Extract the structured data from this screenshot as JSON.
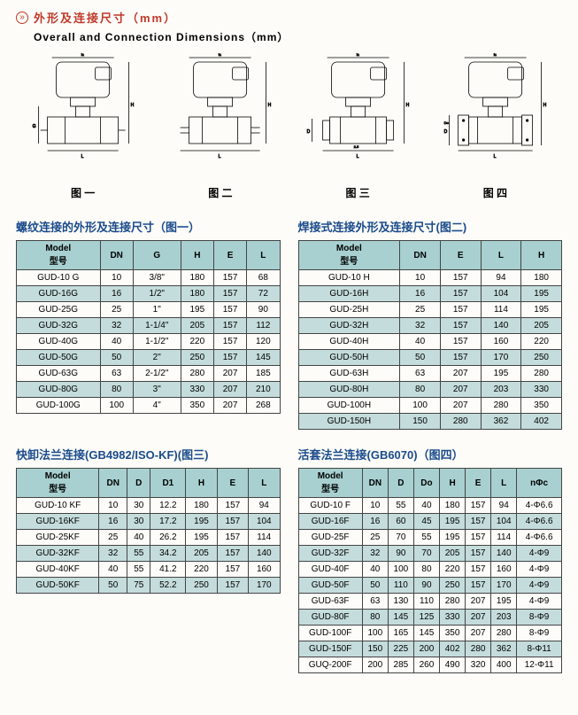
{
  "title": {
    "marker": "»",
    "cn": "外形及连接尺寸（mm）",
    "en": "Overall and Connection Dimensions（mm）"
  },
  "diagram_labels": [
    "图 一",
    "图 二",
    "图 三",
    "图 四"
  ],
  "table1": {
    "title": "螺纹连接的外形及连接尺寸（图一）",
    "headers": [
      "Model\n型号",
      "DN",
      "G",
      "H",
      "E",
      "L"
    ],
    "rows": [
      [
        "GUD-10 G",
        "10",
        "3/8\"",
        "180",
        "157",
        "68"
      ],
      [
        "GUD-16G",
        "16",
        "1/2\"",
        "180",
        "157",
        "72"
      ],
      [
        "GUD-25G",
        "25",
        "1\"",
        "195",
        "157",
        "90"
      ],
      [
        "GUD-32G",
        "32",
        "1-1/4\"",
        "205",
        "157",
        "112"
      ],
      [
        "GUD-40G",
        "40",
        "1-1/2\"",
        "220",
        "157",
        "120"
      ],
      [
        "GUD-50G",
        "50",
        "2\"",
        "250",
        "157",
        "145"
      ],
      [
        "GUD-63G",
        "63",
        "2-1/2\"",
        "280",
        "207",
        "185"
      ],
      [
        "GUD-80G",
        "80",
        "3\"",
        "330",
        "207",
        "210"
      ],
      [
        "GUD-100G",
        "100",
        "4\"",
        "350",
        "207",
        "268"
      ]
    ]
  },
  "table2": {
    "title": "焊接式连接外形及连接尺寸(图二)",
    "headers": [
      "Model\n型号",
      "DN",
      "E",
      "L",
      "H"
    ],
    "rows": [
      [
        "GUD-10 H",
        "10",
        "157",
        "94",
        "180"
      ],
      [
        "GUD-16H",
        "16",
        "157",
        "104",
        "195"
      ],
      [
        "GUD-25H",
        "25",
        "157",
        "114",
        "195"
      ],
      [
        "GUD-32H",
        "32",
        "157",
        "140",
        "205"
      ],
      [
        "GUD-40H",
        "40",
        "157",
        "160",
        "220"
      ],
      [
        "GUD-50H",
        "50",
        "157",
        "170",
        "250"
      ],
      [
        "GUD-63H",
        "63",
        "207",
        "195",
        "280"
      ],
      [
        "GUD-80H",
        "80",
        "207",
        "203",
        "330"
      ],
      [
        "GUD-100H",
        "100",
        "207",
        "280",
        "350"
      ],
      [
        "GUD-150H",
        "150",
        "280",
        "362",
        "402"
      ]
    ]
  },
  "table3": {
    "title": "快卸法兰连接(GB4982/ISO-KF)(图三)",
    "headers": [
      "Model\n型号",
      "DN",
      "D",
      "D1",
      "H",
      "E",
      "L"
    ],
    "rows": [
      [
        "GUD-10 KF",
        "10",
        "30",
        "12.2",
        "180",
        "157",
        "94"
      ],
      [
        "GUD-16KF",
        "16",
        "30",
        "17.2",
        "195",
        "157",
        "104"
      ],
      [
        "GUD-25KF",
        "25",
        "40",
        "26.2",
        "195",
        "157",
        "114"
      ],
      [
        "GUD-32KF",
        "32",
        "55",
        "34.2",
        "205",
        "157",
        "140"
      ],
      [
        "GUD-40KF",
        "40",
        "55",
        "41.2",
        "220",
        "157",
        "160"
      ],
      [
        "GUD-50KF",
        "50",
        "75",
        "52.2",
        "250",
        "157",
        "170"
      ]
    ]
  },
  "table4": {
    "title": "活套法兰连接(GB6070)（图四）",
    "headers": [
      "Model\n型号",
      "DN",
      "D",
      "Do",
      "H",
      "E",
      "L",
      "nΦc"
    ],
    "rows": [
      [
        "GUD-10 F",
        "10",
        "55",
        "40",
        "180",
        "157",
        "94",
        "4-Φ6.6"
      ],
      [
        "GUD-16F",
        "16",
        "60",
        "45",
        "195",
        "157",
        "104",
        "4-Φ6.6"
      ],
      [
        "GUD-25F",
        "25",
        "70",
        "55",
        "195",
        "157",
        "114",
        "4-Φ6.6"
      ],
      [
        "GUD-32F",
        "32",
        "90",
        "70",
        "205",
        "157",
        "140",
        "4-Φ9"
      ],
      [
        "GUD-40F",
        "40",
        "100",
        "80",
        "220",
        "157",
        "160",
        "4-Φ9"
      ],
      [
        "GUD-50F",
        "50",
        "110",
        "90",
        "250",
        "157",
        "170",
        "4-Φ9"
      ],
      [
        "GUD-63F",
        "63",
        "130",
        "110",
        "280",
        "207",
        "195",
        "4-Φ9"
      ],
      [
        "GUD-80F",
        "80",
        "145",
        "125",
        "330",
        "207",
        "203",
        "8-Φ9"
      ],
      [
        "GUD-100F",
        "100",
        "165",
        "145",
        "350",
        "207",
        "280",
        "8-Φ9"
      ],
      [
        "GUD-150F",
        "150",
        "225",
        "200",
        "402",
        "280",
        "362",
        "8-Φ11"
      ],
      [
        "GUQ-200F",
        "200",
        "285",
        "260",
        "490",
        "320",
        "400",
        "12-Φ11"
      ]
    ]
  },
  "colors": {
    "title_red": "#c0392b",
    "heading_blue": "#1a4b8b",
    "th_bg": "#a8d0d0",
    "row_even": "#c4dcdc",
    "page_bg": "#fdfcf8"
  }
}
